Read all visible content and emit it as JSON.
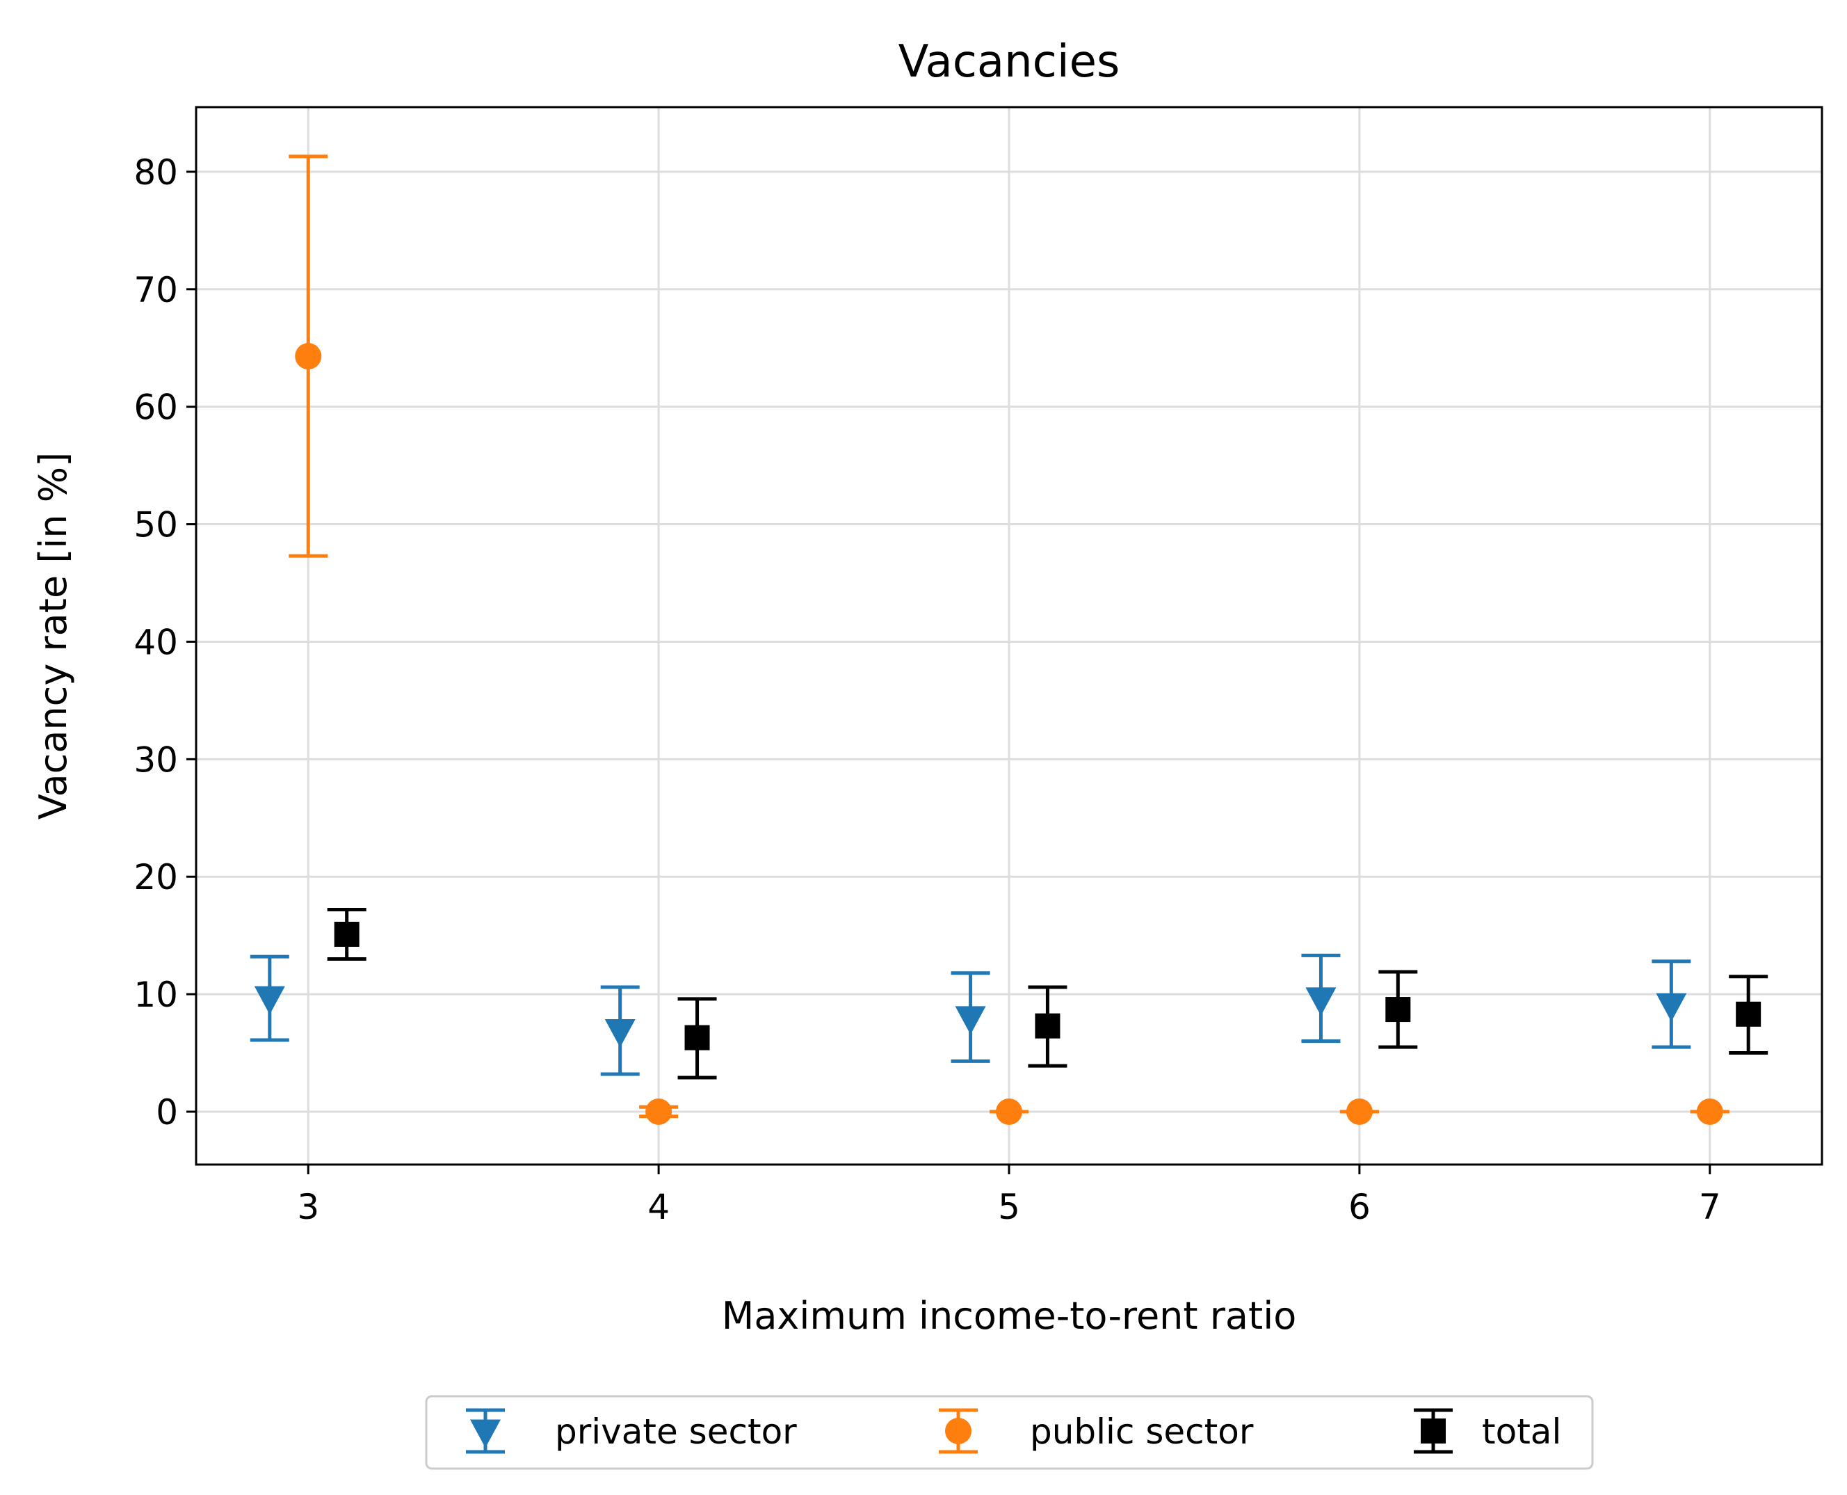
{
  "chart_data": {
    "type": "scatter",
    "title": "Vacancies",
    "xlabel": "Maximum income-to-rent ratio",
    "ylabel": "Vacancy rate [in %]",
    "x_ticks": [
      3,
      4,
      5,
      6,
      7
    ],
    "x_tick_labels": [
      "3",
      "4",
      "5",
      "6",
      "7"
    ],
    "y_ticks": [
      0,
      10,
      20,
      30,
      40,
      50,
      60,
      70,
      80
    ],
    "y_tick_labels": [
      "0",
      "10",
      "20",
      "30",
      "40",
      "50",
      "60",
      "70",
      "80"
    ],
    "xlim": [
      2.68,
      7.32
    ],
    "ylim": [
      -4.5,
      85.5
    ],
    "grid": true,
    "legend_position": "bottom-center, below plot",
    "series": [
      {
        "name": "private sector",
        "color": "#1f77b4",
        "marker": "triangle-down",
        "x": [
          2.89,
          3.89,
          4.89,
          5.89,
          6.89
        ],
        "y": [
          9.7,
          6.9,
          8.0,
          9.6,
          9.1
        ],
        "err_low": [
          6.1,
          3.2,
          4.3,
          6.0,
          5.5
        ],
        "err_high": [
          13.2,
          10.6,
          11.8,
          13.3,
          12.8
        ]
      },
      {
        "name": "public sector",
        "color": "#ff7f0e",
        "marker": "circle",
        "x": [
          3.0,
          4.0,
          5.0,
          6.0,
          7.0
        ],
        "y": [
          64.3,
          0.0,
          0.0,
          0.0,
          0.0
        ],
        "err_low": [
          47.3,
          -0.4,
          0.0,
          0.0,
          0.0
        ],
        "err_high": [
          81.3,
          0.4,
          0.0,
          0.0,
          0.0
        ]
      },
      {
        "name": "total",
        "color": "#000000",
        "marker": "square",
        "x": [
          3.11,
          4.11,
          5.11,
          6.11,
          7.11
        ],
        "y": [
          15.1,
          6.3,
          7.3,
          8.7,
          8.3
        ],
        "err_low": [
          13.0,
          2.9,
          3.9,
          5.5,
          5.0
        ],
        "err_high": [
          17.2,
          9.6,
          10.6,
          11.9,
          11.5
        ]
      }
    ]
  }
}
